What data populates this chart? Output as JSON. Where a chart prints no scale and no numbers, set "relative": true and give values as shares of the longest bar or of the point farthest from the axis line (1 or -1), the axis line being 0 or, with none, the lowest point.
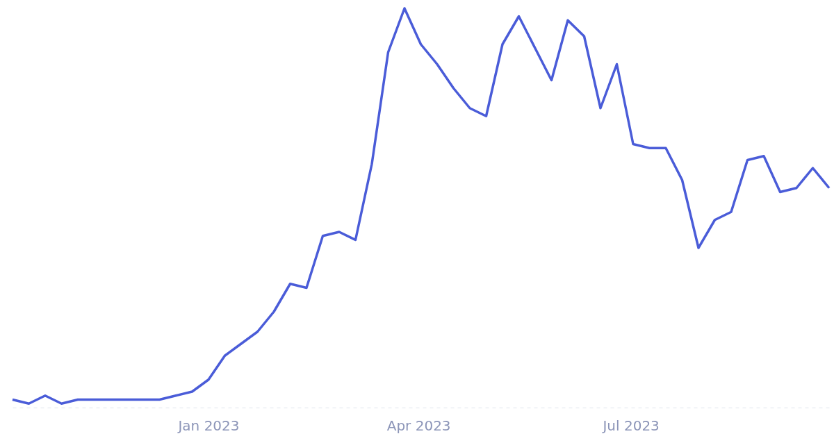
{
  "chart_data": {
    "type": "line",
    "relative": true,
    "color": "#4a5cd8",
    "x": [
      "2022-10-09",
      "2022-10-16",
      "2022-10-23",
      "2022-10-30",
      "2022-11-06",
      "2022-11-13",
      "2022-11-20",
      "2022-11-27",
      "2022-12-04",
      "2022-12-11",
      "2022-12-18",
      "2022-12-25",
      "2023-01-01",
      "2023-01-08",
      "2023-01-15",
      "2023-01-22",
      "2023-01-29",
      "2023-02-05",
      "2023-02-12",
      "2023-02-19",
      "2023-02-26",
      "2023-03-05",
      "2023-03-12",
      "2023-03-19",
      "2023-03-26",
      "2023-04-02",
      "2023-04-09",
      "2023-04-16",
      "2023-04-23",
      "2023-04-30",
      "2023-05-07",
      "2023-05-14",
      "2023-05-21",
      "2023-05-28",
      "2023-06-04",
      "2023-06-11",
      "2023-06-18",
      "2023-06-25",
      "2023-07-02",
      "2023-07-09",
      "2023-07-16",
      "2023-07-23",
      "2023-07-30",
      "2023-08-06",
      "2023-08-13",
      "2023-08-20",
      "2023-08-27",
      "2023-09-03",
      "2023-09-10",
      "2023-09-17",
      "2023-09-24"
    ],
    "values": [
      0.02,
      0.01,
      0.03,
      0.01,
      0.02,
      0.02,
      0.02,
      0.02,
      0.02,
      0.02,
      0.03,
      0.04,
      0.07,
      0.13,
      0.16,
      0.19,
      0.24,
      0.31,
      0.3,
      0.43,
      0.44,
      0.42,
      0.61,
      0.89,
      1,
      0.91,
      0.86,
      0.8,
      0.75,
      0.73,
      0.91,
      0.98,
      0.9,
      0.82,
      0.97,
      0.93,
      0.75,
      0.86,
      0.66,
      0.65,
      0.65,
      0.57,
      0.4,
      0.47,
      0.49,
      0.62,
      0.63,
      0.54,
      0.55,
      0.6,
      0.55
    ],
    "xlim": [
      "2022-10-09",
      "2023-09-24"
    ],
    "xticks": [
      {
        "value": "2023-01-01",
        "label": "Jan 2023"
      },
      {
        "value": "2023-04-01",
        "label": "Apr 2023"
      },
      {
        "value": "2023-07-01",
        "label": "Jul 2023"
      }
    ],
    "tick_labels": "x"
  }
}
